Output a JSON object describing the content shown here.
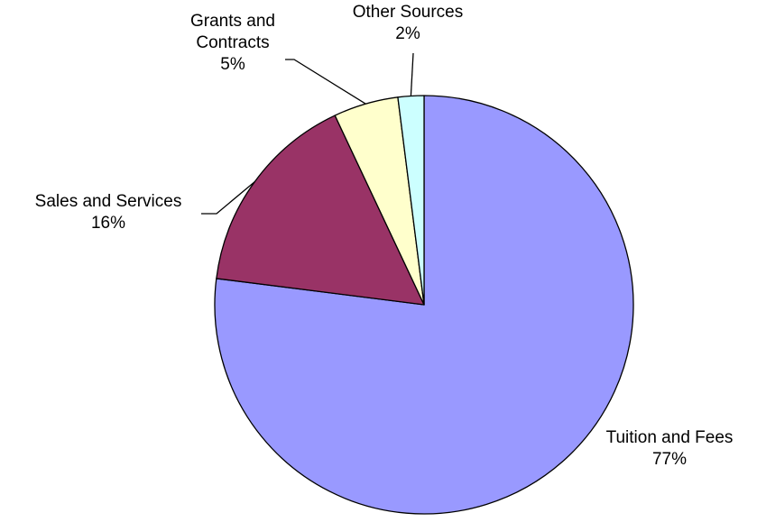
{
  "chart_data": {
    "type": "pie",
    "title": "",
    "start_angle_deg": 0,
    "direction": "clockwise",
    "legend": "none",
    "slices": [
      {
        "label": "Tuition and Fees",
        "value_label": "77%",
        "value": 77,
        "color": "#9999ff"
      },
      {
        "label": "Sales and Services",
        "value_label": "16%",
        "value": 16,
        "color": "#993366"
      },
      {
        "label": "Grants and Contracts",
        "value_label": "5%",
        "value": 5,
        "color": "#ffffcc"
      },
      {
        "label": "Other Sources",
        "value_label": "2%",
        "value": 2,
        "color": "#ccffff"
      }
    ]
  }
}
